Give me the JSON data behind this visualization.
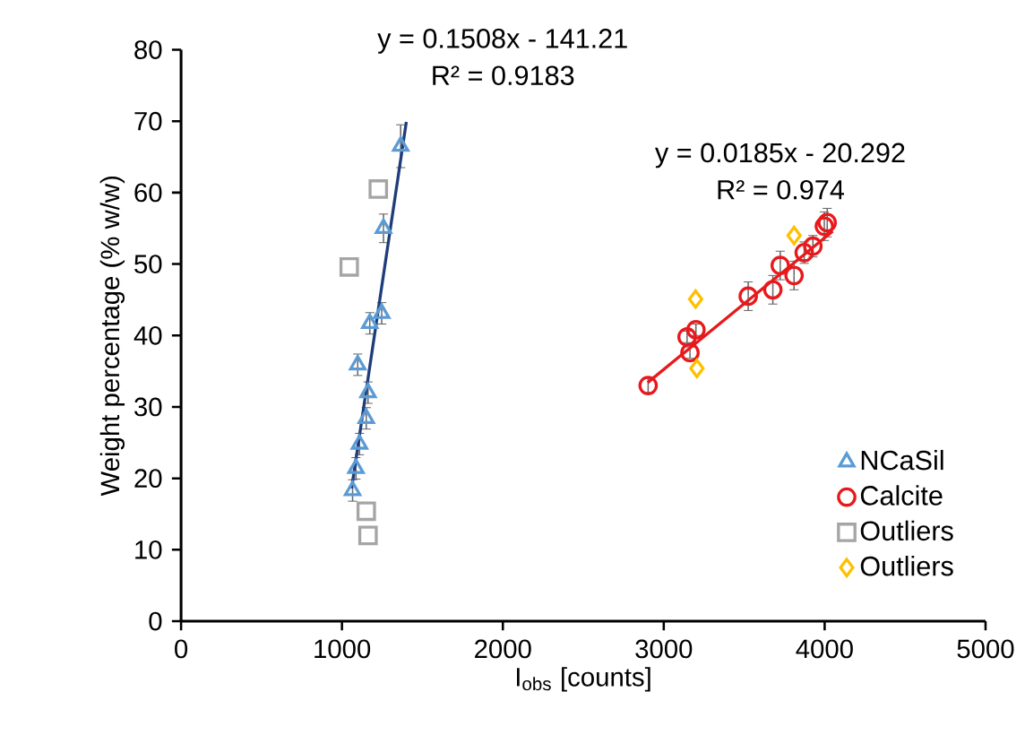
{
  "chart_data": {
    "type": "scatter",
    "xlabel": "I$_{obs}$ [counts]",
    "ylabel": "Weight percentage (% w/w)",
    "xlim": [
      0,
      5000
    ],
    "xticks": [
      0,
      1000,
      2000,
      3000,
      4000,
      5000
    ],
    "ylim": [
      0,
      80
    ],
    "yticks": [
      0,
      10,
      20,
      30,
      40,
      50,
      60,
      70,
      80
    ],
    "grid": false,
    "legend": "bottom right",
    "annotations": [
      "y = 0.1508x - 141.21",
      "R² = 0.9183",
      "y = 0.0185x - 20.292",
      "R² = 0.974"
    ],
    "series": [
      {
        "name": "NCaSil",
        "color": "#5b9bd5",
        "marker": "triangle",
        "x": [
          1365,
          1258,
          1247,
          1173,
          1098,
          1162,
          1151,
          1109,
          1087,
          1066
        ],
        "values": [
          66.5,
          55.0,
          43.1,
          41.7,
          35.9,
          32.0,
          28.4,
          24.8,
          21.4,
          18.3
        ],
        "errors": [
          3,
          2,
          1.5,
          1.5,
          1.5,
          1.5,
          1.5,
          1.5,
          1.5,
          1.5
        ]
      },
      {
        "name": "Calcite",
        "color": "#e8191c",
        "marker": "circle",
        "x": [
          2903,
          3163,
          3145,
          3200,
          3525,
          3678,
          3724,
          3810,
          3873,
          3927,
          3998,
          4016
        ],
        "values": [
          33.0,
          37.6,
          39.8,
          40.8,
          45.5,
          46.4,
          49.8,
          48.4,
          51.6,
          52.5,
          55.3,
          55.8
        ],
        "errors": [
          1,
          0.8,
          0.8,
          0.8,
          2,
          2,
          2,
          2,
          1.5,
          1.5,
          2,
          2
        ]
      },
      {
        "name": "Outliers",
        "color": "#a5a5a5",
        "marker": "square",
        "x": [
          1226,
          1045,
          1151,
          1162
        ],
        "values": [
          60.5,
          49.6,
          15.4,
          12.0
        ]
      },
      {
        "name": "Outliers",
        "color": "#ffc000",
        "marker": "diamond",
        "x": [
          3810,
          3198,
          3206
        ],
        "values": [
          54.0,
          45.1,
          35.4
        ]
      },
      {
        "type": "line",
        "color": "#1f3d7a",
        "marker": "none",
        "x": [
          1060,
          1400
        ],
        "values": [
          18.6,
          69.9
        ]
      },
      {
        "type": "line",
        "color": "#e8191c",
        "marker": "none",
        "x": [
          2900,
          4050
        ],
        "values": [
          33.4,
          54.6
        ]
      }
    ]
  }
}
